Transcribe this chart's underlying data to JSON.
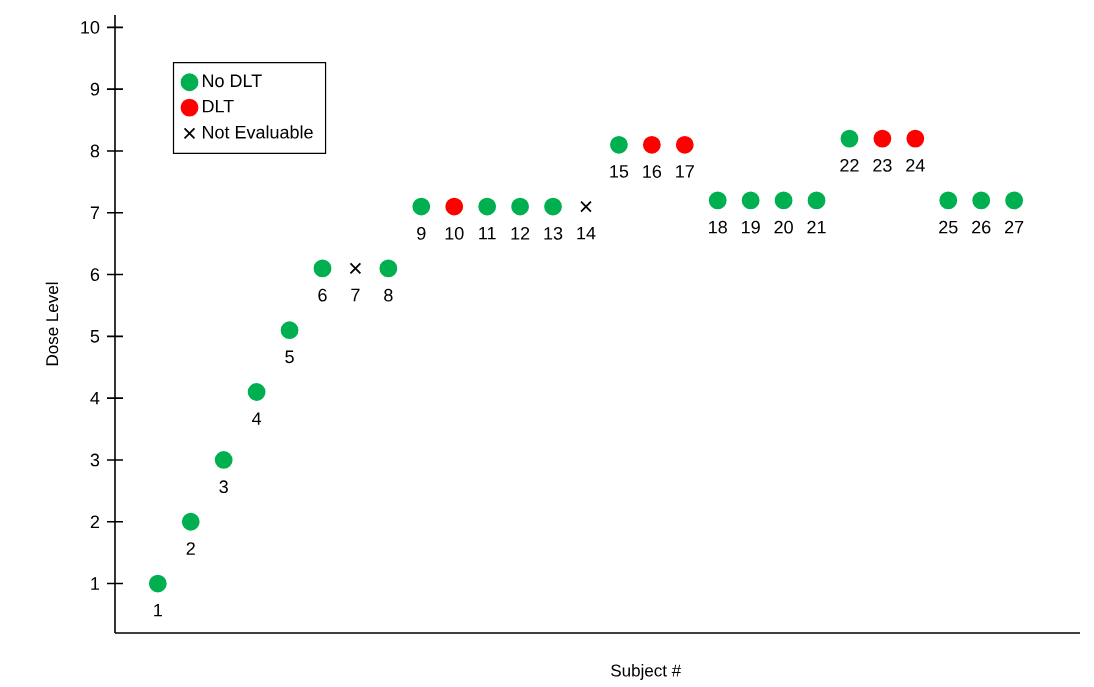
{
  "chart_data": {
    "type": "scatter",
    "xlabel": "Subject #",
    "ylabel": "Dose Level",
    "categories": [
      "1",
      "2",
      "3",
      "4",
      "5",
      "6",
      "7",
      "8",
      "9",
      "10",
      "11",
      "12",
      "13",
      "14",
      "15",
      "16",
      "17",
      "18",
      "19",
      "20",
      "21",
      "22",
      "23",
      "24",
      "25",
      "26",
      "27"
    ],
    "series": [
      {
        "name": "No DLT",
        "color": "#00b050",
        "marker": "circle",
        "values": [
          1,
          2,
          3,
          4.1,
          5.1,
          6.1,
          null,
          6.1,
          7.1,
          null,
          7.1,
          7.1,
          7.1,
          null,
          8.1,
          null,
          null,
          7.2,
          7.2,
          7.2,
          7.2,
          8.2,
          null,
          null,
          7.2,
          7.2,
          7.2
        ]
      },
      {
        "name": "DLT",
        "color": "#ff0000",
        "marker": "circle",
        "values": [
          null,
          null,
          null,
          null,
          null,
          null,
          null,
          null,
          null,
          7.1,
          null,
          null,
          null,
          null,
          null,
          8.1,
          8.1,
          null,
          null,
          null,
          null,
          null,
          8.2,
          8.2,
          null,
          null,
          null
        ]
      },
      {
        "name": "Not Evaluable",
        "color": "#000000",
        "marker": "cross",
        "values": [
          null,
          null,
          null,
          null,
          null,
          null,
          6.1,
          null,
          null,
          null,
          null,
          null,
          null,
          7.1,
          null,
          null,
          null,
          null,
          null,
          null,
          null,
          null,
          null,
          null,
          null,
          null,
          null
        ]
      }
    ],
    "ylim": [
      0.2,
      10.2
    ],
    "yticks": [
      1,
      2,
      3,
      4,
      5,
      6,
      7,
      8,
      9,
      10
    ],
    "tick_labels": "y",
    "legend": "top left"
  }
}
